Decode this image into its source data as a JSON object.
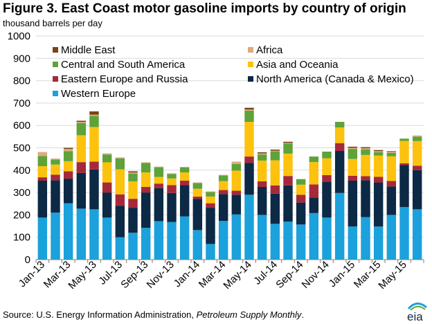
{
  "title": "Figure 3. East Coast motor gasoline imports by country of origin",
  "subtitle": "thousand  barrels  per day",
  "source": {
    "prefix": "Source: U.S. Energy Information Administration,",
    "publication": "Petroleum Supply Monthly",
    "suffix": "."
  },
  "logo_text": "eia",
  "chart_data": {
    "type": "bar",
    "stacked": true,
    "title": "",
    "xlabel": "",
    "ylabel": "",
    "ylim": [
      0,
      1000
    ],
    "yticks": [
      0,
      100,
      200,
      300,
      400,
      500,
      600,
      700,
      800,
      900,
      1000
    ],
    "grid": true,
    "legend_position": "top-left",
    "categories": [
      "Jan-13",
      "Feb-13",
      "Mar-13",
      "Apr-13",
      "May-13",
      "Jun-13",
      "Jul-13",
      "Aug-13",
      "Sep-13",
      "Oct-13",
      "Nov-13",
      "Dec-13",
      "Jan-14",
      "Feb-14",
      "Mar-14",
      "Apr-14",
      "May-14",
      "Jun-14",
      "Jul-14",
      "Aug-14",
      "Sep-14",
      "Oct-14",
      "Nov-14",
      "Dec-14",
      "Jan-15",
      "Feb-15",
      "Mar-15",
      "Apr-15",
      "May-15",
      "Jun-15"
    ],
    "tick_labels": [
      "Jan-13",
      "Mar-13",
      "May-13",
      "Jul-13",
      "Sep-13",
      "Nov-13",
      "Jan-14",
      "Mar-14",
      "May-14",
      "Jul-14",
      "Sep-14",
      "Nov-14",
      "Jan-15",
      "Mar-15",
      "May-15"
    ],
    "series": [
      {
        "name": "Western Europe",
        "color": "#1ba1db",
        "values": [
          188,
          210,
          252,
          228,
          225,
          188,
          100,
          120,
          142,
          172,
          168,
          193,
          132,
          70,
          173,
          202,
          290,
          200,
          160,
          170,
          157,
          208,
          188,
          298,
          148,
          190,
          148,
          200,
          235,
          225
        ]
      },
      {
        "name": "North America (Canada & Mexico)",
        "color": "#0c2945",
        "values": [
          165,
          145,
          110,
          160,
          178,
          112,
          140,
          112,
          158,
          148,
          130,
          140,
          140,
          162,
          120,
          88,
          143,
          125,
          135,
          162,
          98,
          70,
          160,
          188,
          205,
          165,
          197,
          127,
          188,
          175
        ]
      },
      {
        "name": "Eastern Europe and Russia",
        "color": "#a6293a",
        "values": [
          15,
          25,
          33,
          48,
          35,
          45,
          52,
          40,
          25,
          20,
          35,
          20,
          10,
          20,
          18,
          18,
          28,
          25,
          37,
          42,
          35,
          58,
          30,
          35,
          22,
          18,
          25,
          25,
          8,
          20
        ]
      },
      {
        "name": "Asia and Oceania",
        "color": "#fdc20e",
        "values": [
          50,
          45,
          45,
          120,
          155,
          90,
          112,
          78,
          65,
          30,
          30,
          37,
          35,
          30,
          40,
          90,
          155,
          93,
          112,
          100,
          45,
          100,
          75,
          70,
          75,
          95,
          95,
          110,
          100,
          110
        ]
      },
      {
        "name": "Central and South America",
        "color": "#5ea23a",
        "values": [
          45,
          22,
          45,
          55,
          50,
          35,
          48,
          35,
          42,
          43,
          20,
          22,
          25,
          20,
          25,
          30,
          50,
          27,
          40,
          45,
          25,
          25,
          30,
          25,
          45,
          25,
          15,
          15,
          10,
          20
        ]
      },
      {
        "name": "Africa",
        "color": "#dcab7f",
        "values": [
          18,
          5,
          10,
          5,
          5,
          5,
          5,
          5,
          3,
          3,
          3,
          3,
          3,
          3,
          3,
          10,
          5,
          5,
          3,
          3,
          0,
          0,
          0,
          0,
          5,
          5,
          5,
          5,
          0,
          5
        ]
      },
      {
        "name": "Middle East",
        "color": "#7a4414",
        "values": [
          0,
          0,
          5,
          5,
          15,
          0,
          0,
          5,
          0,
          0,
          0,
          0,
          0,
          0,
          0,
          0,
          8,
          5,
          5,
          5,
          0,
          0,
          0,
          0,
          5,
          5,
          5,
          3,
          0,
          0
        ]
      }
    ],
    "legend": [
      {
        "name": "Middle East",
        "color": "#7a4414"
      },
      {
        "name": "Africa",
        "color": "#dcab7f"
      },
      {
        "name": "Central and South America",
        "color": "#5ea23a"
      },
      {
        "name": "Asia and Oceania",
        "color": "#fdc20e"
      },
      {
        "name": "Eastern Europe and Russia",
        "color": "#a6293a"
      },
      {
        "name": "North America (Canada & Mexico)",
        "color": "#0c2945"
      },
      {
        "name": "Western Europe",
        "color": "#1ba1db"
      }
    ]
  }
}
